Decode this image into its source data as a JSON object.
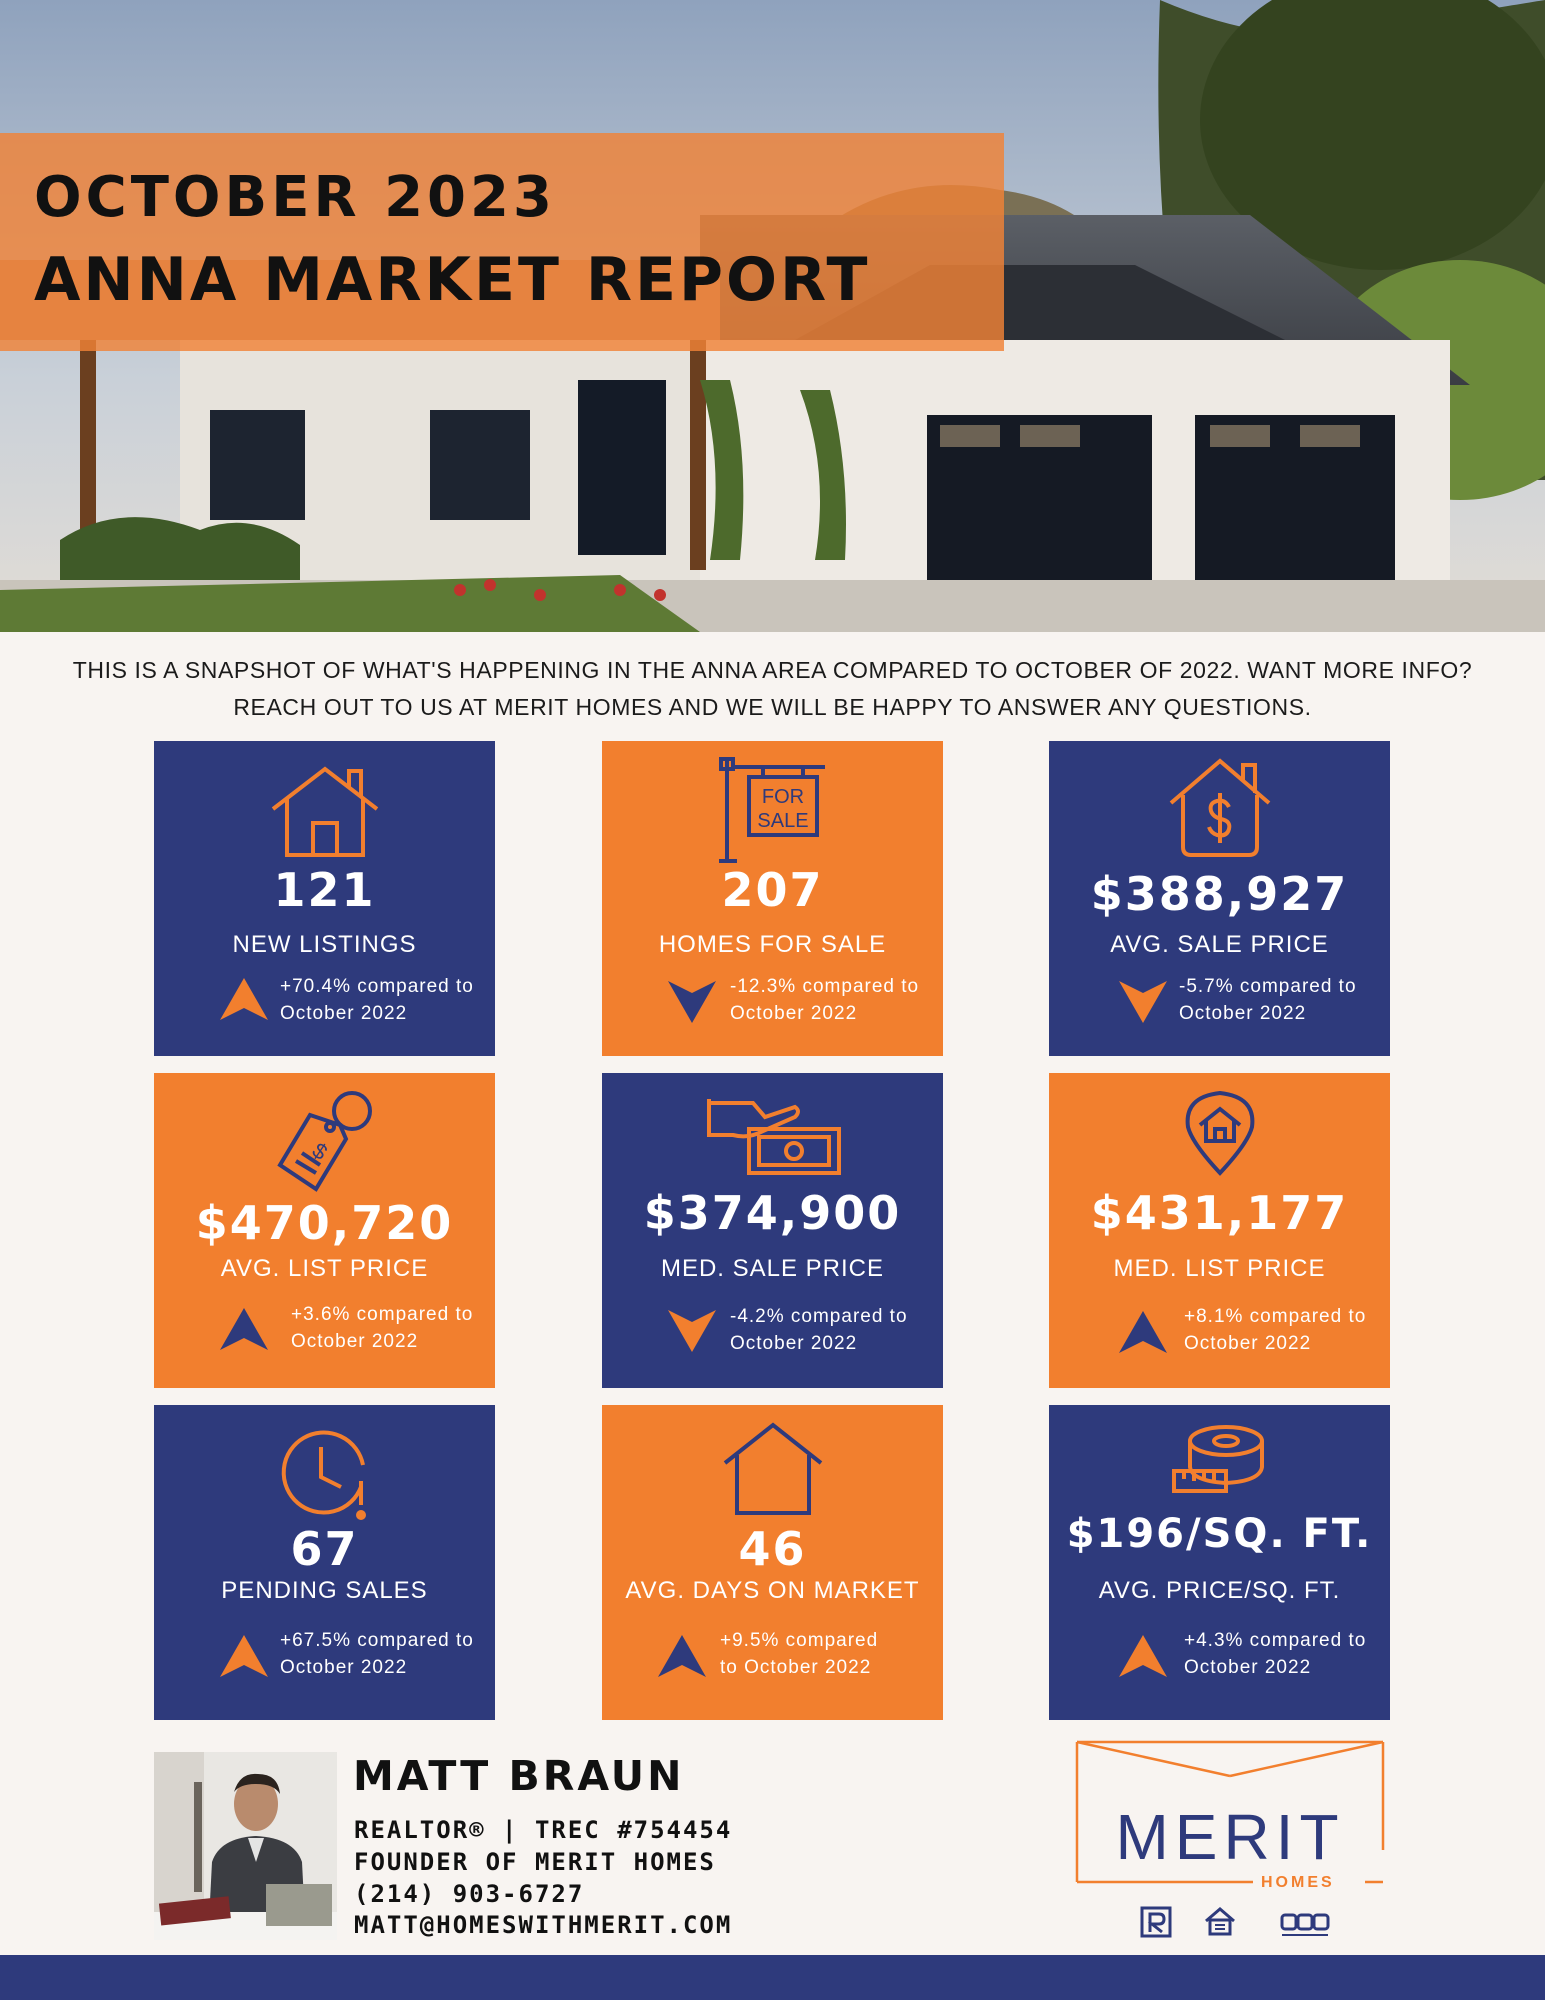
{
  "header": {
    "title_line1": "OCTOBER 2023",
    "title_line2": "ANNA MARKET REPORT"
  },
  "intro": {
    "line1": "THIS IS A SNAPSHOT OF WHAT'S HAPPENING IN THE ANNA AREA COMPARED TO OCTOBER OF 2022. WANT MORE INFO?",
    "line2": "REACH OUT TO US AT MERIT HOMES AND WE WILL BE HAPPY TO ANSWER ANY QUESTIONS."
  },
  "colors": {
    "navy": "#2e3a7c",
    "orange": "#f27f2e",
    "background": "#f8f4f1"
  },
  "stats": [
    {
      "icon": "house-icon",
      "value": "121",
      "label": "NEW LISTINGS",
      "change_line1": "+70.4% compared to",
      "change_line2": "October 2022",
      "trend": "up"
    },
    {
      "icon": "for-sale-sign-icon",
      "icon_text1": "FOR",
      "icon_text2": "SALE",
      "value": "207",
      "label": "HOMES FOR SALE",
      "change_line1": "-12.3% compared to",
      "change_line2": "October 2022",
      "trend": "down"
    },
    {
      "icon": "house-dollar-icon",
      "value": "$388,927",
      "label": "AVG. SALE PRICE",
      "change_line1": "-5.7% compared to",
      "change_line2": "October 2022",
      "trend": "down"
    },
    {
      "icon": "price-tag-icon",
      "value": "$470,720",
      "label": "AVG. LIST PRICE",
      "change_line1": "+3.6% compared to",
      "change_line2": "October 2022",
      "trend": "up"
    },
    {
      "icon": "hand-money-icon",
      "value": "$374,900",
      "label": "MED. SALE PRICE",
      "change_line1": "-4.2% compared to",
      "change_line2": "October 2022",
      "trend": "down"
    },
    {
      "icon": "location-house-icon",
      "value": "$431,177",
      "label": "MED. LIST PRICE",
      "change_line1": "+8.1% compared to",
      "change_line2": "October 2022",
      "trend": "up"
    },
    {
      "icon": "clock-alert-icon",
      "value": "67",
      "label": "PENDING SALES",
      "change_line1": "+67.5% compared to",
      "change_line2": "October 2022",
      "trend": "up"
    },
    {
      "icon": "house-outline-icon",
      "value": "46",
      "label": "AVG. DAYS ON MARKET",
      "change_line1": "+9.5% compared",
      "change_line2": "to October 2022",
      "trend": "up"
    },
    {
      "icon": "tape-measure-icon",
      "value": "$196/SQ. FT.",
      "label": "AVG. PRICE/SQ. FT.",
      "change_line1": "+4.3% compared to",
      "change_line2": "October 2022",
      "trend": "up"
    }
  ],
  "agent": {
    "name": "MATT BRAUN",
    "line1": "REALTOR® | TREC #754454",
    "line2": "FOUNDER OF MERIT HOMES",
    "phone": "(214) 903-6727",
    "email": "MATT@HOMESWITHMERIT.COM"
  },
  "logo": {
    "name": "MERIT",
    "sub": "HOMES"
  }
}
